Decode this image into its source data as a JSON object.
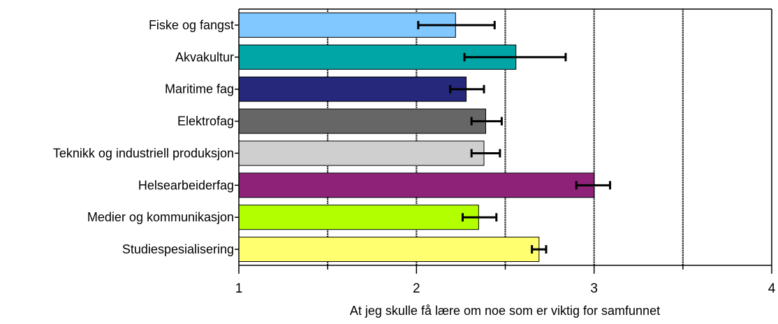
{
  "chart_data": {
    "type": "bar",
    "orientation": "horizontal",
    "categories": [
      "Fiske og fangst",
      "Akvakultur",
      "Maritime fag",
      "Elektrofag",
      "Teknikk og industriell produksjon",
      "Helsearbeiderfag",
      "Medier og kommunikasjon",
      "Studiespesialisering"
    ],
    "values": [
      2.22,
      2.56,
      2.28,
      2.39,
      2.38,
      3.0,
      2.35,
      2.69
    ],
    "error_low": [
      2.01,
      2.27,
      2.19,
      2.31,
      2.31,
      2.9,
      2.26,
      2.65
    ],
    "error_high": [
      2.44,
      2.84,
      2.38,
      2.48,
      2.47,
      3.09,
      2.45,
      2.73
    ],
    "bar_colors": [
      "#80c8ff",
      "#00a6a6",
      "#26287c",
      "#666666",
      "#cfcfcf",
      "#8e2279",
      "#b2ff00",
      "#ffff70"
    ],
    "xlim": [
      1,
      4
    ],
    "x_ticks": [
      1,
      2,
      3,
      4
    ],
    "x_tick_labels": [
      "1",
      "2",
      "3",
      "4"
    ],
    "gridlines": [
      1.5,
      2,
      2.5,
      3,
      3.5,
      4
    ],
    "grid": true,
    "xlabel": "At jeg skulle få lære om noe som er viktig for samfunnet",
    "ylabel": "",
    "title": ""
  }
}
